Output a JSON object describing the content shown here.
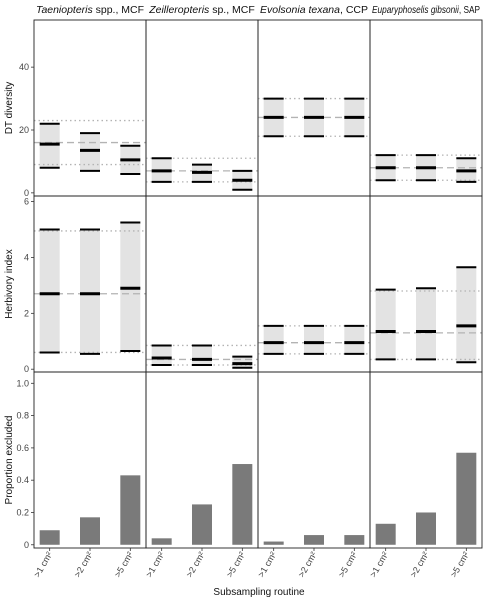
{
  "chart_data": {
    "type": "faceted",
    "xlabel": "Subsampling routine",
    "categories": [
      ">1 cm²",
      ">2 cm²",
      ">5 cm²"
    ],
    "facets": [
      {
        "label_italic": "Taeniopteris",
        "label_rest": " spp., MCF"
      },
      {
        "label_italic": "Zeilleropteris",
        "label_rest": " sp., MCF"
      },
      {
        "label_italic": "Evolsonia texana",
        "label_rest": ", CCP"
      },
      {
        "label_italic": "Euparyphoselis gibsonii",
        "label_rest": ", SAP"
      }
    ],
    "rows": [
      {
        "ylabel": "DT diversity",
        "kind": "range",
        "ylim": [
          -1,
          55
        ],
        "yticks": [
          "0",
          "20",
          "40"
        ],
        "ytick_values": [
          0,
          20,
          40
        ],
        "panels": [
          {
            "ref_mid": 16,
            "ref_low": 9,
            "ref_high": 23,
            "cats": [
              {
                "low": 8,
                "mid": 15.5,
                "high": 22
              },
              {
                "low": 7,
                "mid": 13.5,
                "high": 19
              },
              {
                "low": 6,
                "mid": 10.5,
                "high": 15
              }
            ]
          },
          {
            "ref_mid": 7,
            "ref_low": 3.5,
            "ref_high": 11,
            "cats": [
              {
                "low": 3.5,
                "mid": 7,
                "high": 11
              },
              {
                "low": 3.5,
                "mid": 6.5,
                "high": 9
              },
              {
                "low": 1,
                "mid": 4,
                "high": 7
              }
            ]
          },
          {
            "ref_mid": 24,
            "ref_low": 18,
            "ref_high": 30,
            "cats": [
              {
                "low": 18,
                "mid": 24,
                "high": 30
              },
              {
                "low": 18,
                "mid": 24,
                "high": 30
              },
              {
                "low": 18,
                "mid": 24,
                "high": 30
              }
            ]
          },
          {
            "ref_mid": 8,
            "ref_low": 4,
            "ref_high": 12,
            "cats": [
              {
                "low": 4,
                "mid": 8,
                "high": 12
              },
              {
                "low": 4,
                "mid": 8,
                "high": 12
              },
              {
                "low": 3.5,
                "mid": 7,
                "high": 11
              }
            ]
          }
        ]
      },
      {
        "ylabel": "Herbivory index",
        "kind": "range",
        "ylim": [
          -0.1,
          6.2
        ],
        "yticks": [
          "0",
          "2",
          "4",
          "6"
        ],
        "ytick_values": [
          0,
          2,
          4,
          6
        ],
        "panels": [
          {
            "ref_mid": 2.7,
            "ref_low": 0.6,
            "ref_high": 4.95,
            "cats": [
              {
                "low": 0.6,
                "mid": 2.7,
                "high": 5.0
              },
              {
                "low": 0.55,
                "mid": 2.7,
                "high": 5.0
              },
              {
                "low": 0.65,
                "mid": 2.9,
                "high": 5.25
              }
            ]
          },
          {
            "ref_mid": 0.35,
            "ref_low": 0.15,
            "ref_high": 0.85,
            "cats": [
              {
                "low": 0.15,
                "mid": 0.4,
                "high": 0.85
              },
              {
                "low": 0.15,
                "mid": 0.35,
                "high": 0.85
              },
              {
                "low": 0.05,
                "mid": 0.2,
                "high": 0.45
              }
            ]
          },
          {
            "ref_mid": 0.95,
            "ref_low": 0.55,
            "ref_high": 1.55,
            "cats": [
              {
                "low": 0.55,
                "mid": 0.95,
                "high": 1.55
              },
              {
                "low": 0.55,
                "mid": 0.95,
                "high": 1.55
              },
              {
                "low": 0.55,
                "mid": 0.95,
                "high": 1.55
              }
            ]
          },
          {
            "ref_mid": 1.3,
            "ref_low": 0.35,
            "ref_high": 2.8,
            "cats": [
              {
                "low": 0.35,
                "mid": 1.35,
                "high": 2.85
              },
              {
                "low": 0.35,
                "mid": 1.35,
                "high": 2.9
              },
              {
                "low": 0.25,
                "mid": 1.55,
                "high": 3.65
              }
            ]
          }
        ]
      },
      {
        "ylabel": "Proportion excluded",
        "kind": "bar",
        "ylim": [
          -0.02,
          1.07
        ],
        "yticks": [
          "0",
          "0.2",
          "0.4",
          "0.6",
          "0.8",
          "1.0"
        ],
        "ytick_values": [
          0,
          0.2,
          0.4,
          0.6,
          0.8,
          1.0
        ],
        "panels": [
          {
            "values": [
              0.09,
              0.17,
              0.43
            ]
          },
          {
            "values": [
              0.04,
              0.25,
              0.5
            ]
          },
          {
            "values": [
              0.02,
              0.06,
              0.06
            ]
          },
          {
            "values": [
              0.13,
              0.2,
              0.57
            ]
          }
        ]
      }
    ],
    "colors": {
      "band": "#e3e3e3",
      "bar": "#7a7a7a",
      "ref": "#b3b3b3",
      "line": "#000000"
    }
  }
}
